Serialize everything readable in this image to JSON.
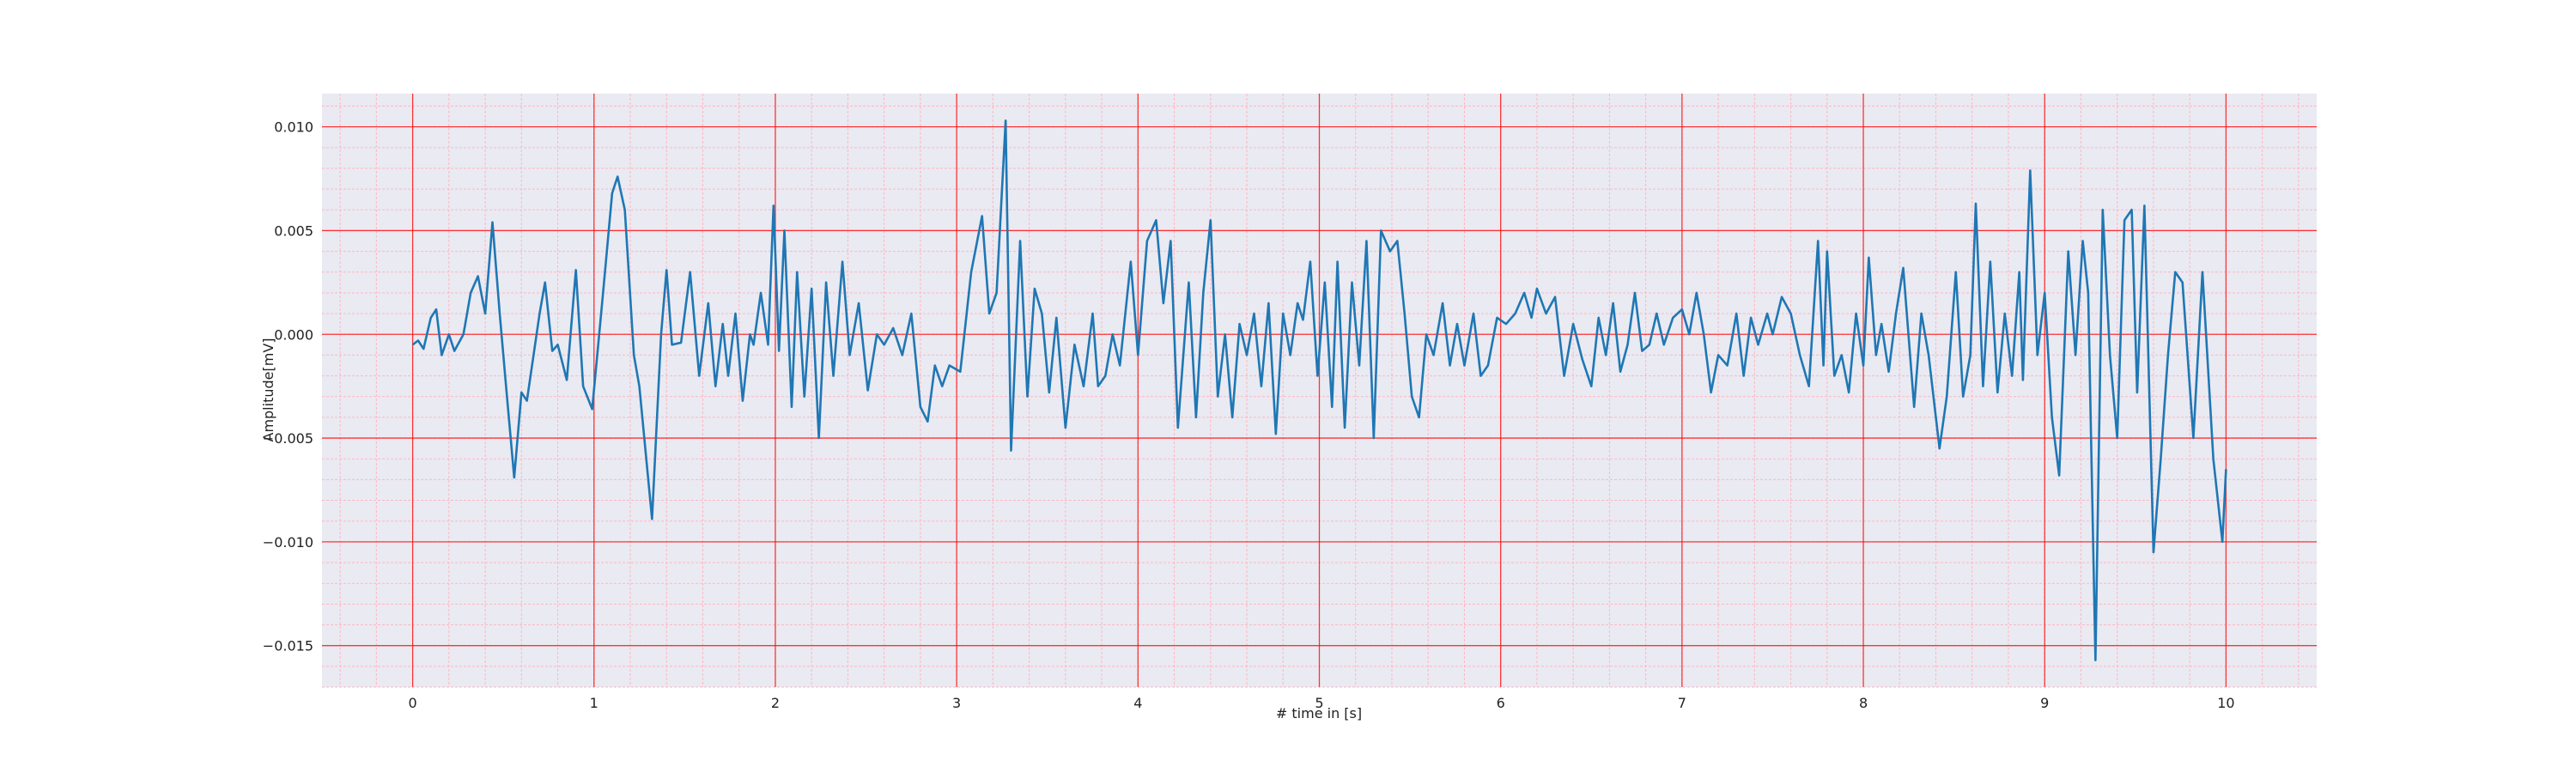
{
  "chart_data": {
    "type": "line",
    "xlabel": "# time in [s]",
    "ylabel": "Amplitude[mV]",
    "color": "#1f77b4",
    "background": "#eaeaf2",
    "grid": true,
    "grid_color": "#ff0000",
    "minor_grid_color": "#ffb6c1",
    "minor_divisions": 5,
    "xlim": [
      -0.5,
      10.5
    ],
    "ylim": [
      -0.017,
      0.0116
    ],
    "xticks": [
      0,
      1,
      2,
      3,
      4,
      5,
      6,
      7,
      8,
      9,
      10
    ],
    "yticks": [
      {
        "value": -0.015,
        "label": "−0.015"
      },
      {
        "value": -0.01,
        "label": "−0.010"
      },
      {
        "value": -0.005,
        "label": "−0.005"
      },
      {
        "value": 0,
        "label": "0.000"
      },
      {
        "value": 0.005,
        "label": "0.005"
      },
      {
        "value": 0.01,
        "label": "0.010"
      }
    ],
    "x": [
      0.0,
      0.03,
      0.06,
      0.1,
      0.13,
      0.16,
      0.2,
      0.23,
      0.28,
      0.32,
      0.36,
      0.4,
      0.44,
      0.48,
      0.52,
      0.56,
      0.6,
      0.63,
      0.7,
      0.73,
      0.77,
      0.8,
      0.85,
      0.9,
      0.94,
      0.99,
      1.05,
      1.1,
      1.13,
      1.17,
      1.22,
      1.25,
      1.32,
      1.37,
      1.4,
      1.43,
      1.48,
      1.53,
      1.58,
      1.63,
      1.67,
      1.71,
      1.74,
      1.78,
      1.82,
      1.86,
      1.88,
      1.92,
      1.96,
      1.99,
      2.02,
      2.05,
      2.09,
      2.12,
      2.16,
      2.2,
      2.24,
      2.28,
      2.32,
      2.37,
      2.41,
      2.46,
      2.51,
      2.56,
      2.6,
      2.65,
      2.7,
      2.75,
      2.8,
      2.84,
      2.88,
      2.92,
      2.96,
      3.02,
      3.08,
      3.14,
      3.18,
      3.22,
      3.27,
      3.3,
      3.35,
      3.39,
      3.43,
      3.47,
      3.51,
      3.55,
      3.6,
      3.65,
      3.7,
      3.75,
      3.78,
      3.82,
      3.86,
      3.9,
      3.96,
      4.0,
      4.05,
      4.1,
      4.14,
      4.18,
      4.22,
      4.28,
      4.32,
      4.36,
      4.4,
      4.44,
      4.48,
      4.52,
      4.56,
      4.6,
      4.64,
      4.68,
      4.72,
      4.76,
      4.8,
      4.84,
      4.88,
      4.91,
      4.95,
      4.99,
      5.03,
      5.07,
      5.1,
      5.14,
      5.18,
      5.22,
      5.26,
      5.3,
      5.34,
      5.39,
      5.43,
      5.47,
      5.51,
      5.55,
      5.59,
      5.63,
      5.68,
      5.72,
      5.76,
      5.8,
      5.85,
      5.89,
      5.93,
      5.98,
      6.03,
      6.08,
      6.13,
      6.17,
      6.2,
      6.25,
      6.3,
      6.35,
      6.4,
      6.45,
      6.5,
      6.54,
      6.58,
      6.62,
      6.66,
      6.7,
      6.74,
      6.78,
      6.82,
      6.86,
      6.9,
      6.95,
      7.0,
      7.04,
      7.08,
      7.12,
      7.16,
      7.2,
      7.25,
      7.3,
      7.34,
      7.38,
      7.42,
      7.47,
      7.5,
      7.55,
      7.6,
      7.65,
      7.7,
      7.75,
      7.78,
      7.8,
      7.84,
      7.88,
      7.92,
      7.96,
      8.0,
      8.03,
      8.07,
      8.1,
      8.14,
      8.18,
      8.22,
      8.28,
      8.32,
      8.36,
      8.42,
      8.46,
      8.51,
      8.55,
      8.59,
      8.62,
      8.66,
      8.7,
      8.74,
      8.78,
      8.82,
      8.86,
      8.88,
      8.92,
      8.96,
      9.0,
      9.04,
      9.08,
      9.13,
      9.17,
      9.21,
      9.24,
      9.28,
      9.32,
      9.36,
      9.4,
      9.44,
      9.48,
      9.51,
      9.55,
      9.6,
      9.64,
      9.68,
      9.72,
      9.76,
      9.82,
      9.87,
      9.93,
      9.98,
      10.0
    ],
    "values": [
      -0.0005,
      -0.0003,
      -0.0007,
      0.0008,
      0.0012,
      -0.001,
      0.0,
      -0.0008,
      0.0,
      0.002,
      0.0028,
      0.001,
      0.0054,
      0.001,
      -0.003,
      -0.0069,
      -0.0028,
      -0.0032,
      0.001,
      0.0025,
      -0.0008,
      -0.0005,
      -0.0022,
      0.0031,
      -0.0025,
      -0.0036,
      0.002,
      0.0068,
      0.0076,
      0.006,
      -0.001,
      -0.0025,
      -0.0089,
      0.0,
      0.0031,
      -0.0005,
      -0.0004,
      0.003,
      -0.002,
      0.0015,
      -0.0025,
      0.0005,
      -0.002,
      0.001,
      -0.0032,
      0.0,
      -0.0005,
      0.002,
      -0.0005,
      0.0062,
      -0.0008,
      0.005,
      -0.0035,
      0.003,
      -0.003,
      0.0022,
      -0.005,
      0.0025,
      -0.002,
      0.0035,
      -0.001,
      0.0015,
      -0.0027,
      0.0,
      -0.0005,
      0.0003,
      -0.001,
      0.001,
      -0.0035,
      -0.0042,
      -0.0015,
      -0.0025,
      -0.0015,
      -0.0018,
      0.003,
      0.0057,
      0.001,
      0.002,
      0.0103,
      -0.0056,
      0.0045,
      -0.003,
      0.0022,
      0.001,
      -0.0028,
      0.0008,
      -0.0045,
      -0.0005,
      -0.0025,
      0.001,
      -0.0025,
      -0.002,
      0.0,
      -0.0015,
      0.0035,
      -0.001,
      0.0045,
      0.0055,
      0.0015,
      0.0045,
      -0.0045,
      0.0025,
      -0.004,
      0.002,
      0.0055,
      -0.003,
      0.0,
      -0.004,
      0.0005,
      -0.001,
      0.001,
      -0.0025,
      0.0015,
      -0.0048,
      0.001,
      -0.001,
      0.0015,
      0.0007,
      0.0035,
      -0.002,
      0.0025,
      -0.0035,
      0.0035,
      -0.0045,
      0.0025,
      -0.0015,
      0.0045,
      -0.005,
      0.005,
      0.004,
      0.0045,
      0.001,
      -0.003,
      -0.004,
      0.0,
      -0.001,
      0.0015,
      -0.0015,
      0.0005,
      -0.0015,
      0.001,
      -0.002,
      -0.0015,
      0.0008,
      0.0005,
      0.001,
      0.002,
      0.0008,
      0.0022,
      0.001,
      0.0018,
      -0.002,
      0.0005,
      -0.0012,
      -0.0025,
      0.0008,
      -0.001,
      0.0015,
      -0.0018,
      -0.0005,
      0.002,
      -0.0008,
      -0.0005,
      0.001,
      -0.0005,
      0.0008,
      0.0012,
      0.0,
      0.002,
      0.0,
      -0.0028,
      -0.001,
      -0.0015,
      0.001,
      -0.002,
      0.0008,
      -0.0005,
      0.001,
      0.0,
      0.0018,
      0.001,
      -0.001,
      -0.0025,
      0.0045,
      -0.0015,
      0.004,
      -0.002,
      -0.001,
      -0.0028,
      0.001,
      -0.0015,
      0.0037,
      -0.001,
      0.0005,
      -0.0018,
      0.001,
      0.0032,
      -0.0035,
      0.001,
      -0.001,
      -0.0055,
      -0.003,
      0.003,
      -0.003,
      -0.001,
      0.0063,
      -0.0025,
      0.0035,
      -0.0028,
      0.001,
      -0.002,
      0.003,
      -0.0022,
      0.0079,
      -0.001,
      0.002,
      -0.004,
      -0.0068,
      0.004,
      -0.001,
      0.0045,
      0.002,
      -0.0157,
      0.006,
      -0.001,
      -0.005,
      0.0055,
      0.006,
      -0.0028,
      0.0062,
      -0.0105,
      -0.006,
      -0.001,
      0.003,
      0.0025,
      -0.005,
      0.003,
      -0.006,
      -0.01,
      -0.0065
    ]
  }
}
